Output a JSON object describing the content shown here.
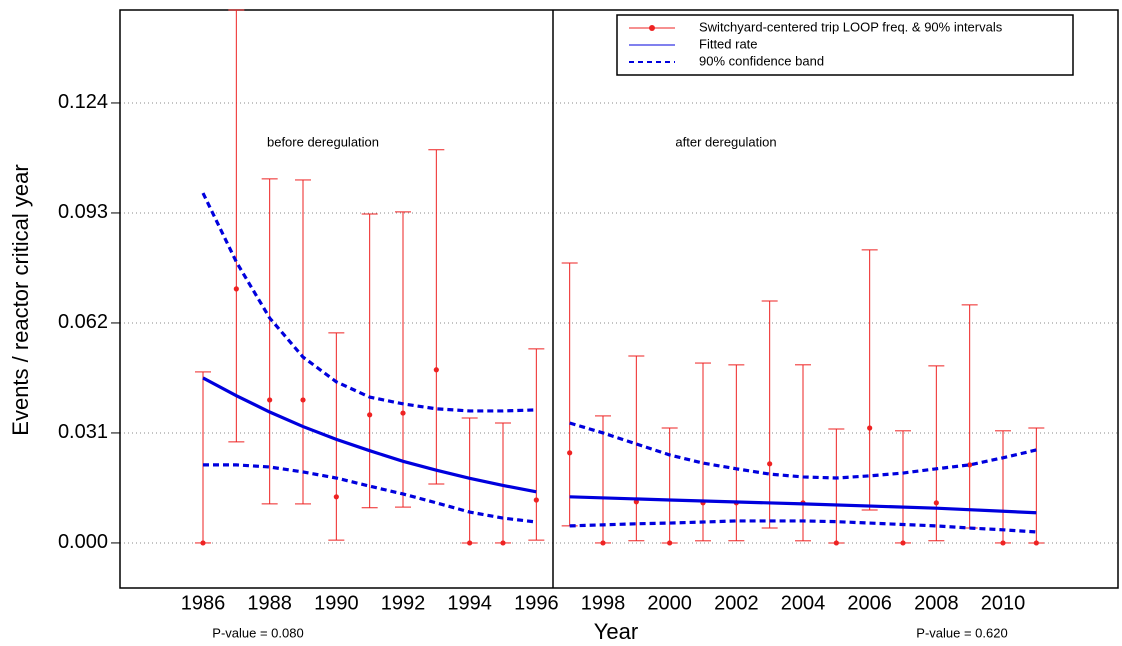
{
  "chart_data": {
    "type": "errorbar",
    "x_label": "Year",
    "y_label": "Events / reactor critical year",
    "xlim": [
      1983.51,
      2013.45
    ],
    "ylim": [
      -0.0127,
      0.1502
    ],
    "xticks": [
      1986,
      1988,
      1990,
      1992,
      1994,
      1996,
      1998,
      2000,
      2002,
      2004,
      2006,
      2008,
      2010
    ],
    "yticks": [
      {
        "value": 0,
        "label": "0.000"
      },
      {
        "value": 0.031,
        "label": "0.031"
      },
      {
        "value": 0.062,
        "label": "0.062"
      },
      {
        "value": 0.093,
        "label": "0.093"
      },
      {
        "value": 0.124,
        "label": "0.124"
      }
    ],
    "grid": true,
    "divider": 1996.5,
    "legend": "top-right",
    "annotations": [
      "before deregulation",
      "after deregulation",
      "P-value = 0.080",
      "P-value = 0.620"
    ],
    "x": [
      1986,
      1987,
      1988,
      1989,
      1990,
      1991,
      1992,
      1993,
      1994,
      1995,
      1996,
      1997,
      1998,
      1999,
      2000,
      2001,
      2002,
      2003,
      2004,
      2005,
      2006,
      2007,
      2008,
      2009,
      2010,
      2011
    ],
    "points": {
      "name": "Switchyard-centered trip LOOP freq. & 90% intervals",
      "color": "#ee2222",
      "values": [
        0,
        0.0716,
        0.0403,
        0.0403,
        0.013,
        0.0361,
        0.0366,
        0.0488,
        0,
        0,
        0.0121,
        0.0254,
        0,
        0.0116,
        0,
        0.0113,
        0.0113,
        0.0223,
        0.0113,
        0,
        0.0324,
        0,
        0.0113,
        0.022,
        0,
        0
      ],
      "lower": [
        0,
        0.0285,
        0.011,
        0.011,
        0.0008,
        0.0099,
        0.0101,
        0.0166,
        0,
        0,
        0.0008,
        0.0048,
        0,
        0.0006,
        0,
        0.0006,
        0.0006,
        0.0042,
        0.0006,
        0,
        0.0093,
        0,
        0.0006,
        0.0042,
        0,
        0
      ],
      "upper": [
        0.0482,
        0.1502,
        0.1026,
        0.1023,
        0.0592,
        0.0927,
        0.0933,
        0.1108,
        0.0352,
        0.0338,
        0.0547,
        0.0789,
        0.0358,
        0.0527,
        0.0324,
        0.0507,
        0.0502,
        0.0682,
        0.0502,
        0.0321,
        0.0826,
        0.0316,
        0.0499,
        0.0671,
        0.0316,
        0.0324
      ]
    },
    "series": [
      {
        "name": "Fitted rate",
        "color": "#0000dd",
        "style": "solid",
        "pieces": [
          {
            "x": [
              1986,
              1987,
              1988,
              1989,
              1990,
              1991,
              1992,
              1993,
              1994,
              1995,
              1996
            ],
            "values": [
              0.0465,
              0.0415,
              0.0369,
              0.0328,
              0.0292,
              0.026,
              0.023,
              0.0205,
              0.0182,
              0.0162,
              0.0144
            ]
          },
          {
            "x": [
              1997,
              2000,
              2004,
              2008,
              2011
            ],
            "values": [
              0.013,
              0.0121,
              0.011,
              0.0098,
              0.0085
            ]
          }
        ]
      },
      {
        "name": "90% confidence band",
        "color": "#0000dd",
        "style": "dashed",
        "pieces": [
          {
            "x": [
              1986,
              1987,
              1988,
              1989,
              1990,
              1991,
              1992,
              1993,
              1994,
              1995,
              1996
            ],
            "values": [
              0.0986,
              0.0792,
              0.0634,
              0.0524,
              0.0454,
              0.0411,
              0.0392,
              0.0378,
              0.0372,
              0.0372,
              0.0375
            ]
          },
          {
            "x": [
              1986,
              1987,
              1988,
              1989,
              1990,
              1991,
              1992,
              1993,
              1994,
              1995,
              1996
            ],
            "values": [
              0.022,
              0.022,
              0.0214,
              0.02,
              0.0183,
              0.016,
              0.0138,
              0.0113,
              0.0087,
              0.007,
              0.0059
            ]
          },
          {
            "x": [
              1997,
              1998,
              1999,
              2000,
              2001,
              2002,
              2003,
              2004,
              2005,
              2006,
              2007,
              2008,
              2009,
              2010,
              2011
            ],
            "values": [
              0.0338,
              0.031,
              0.0279,
              0.0248,
              0.0225,
              0.0209,
              0.0194,
              0.0186,
              0.0183,
              0.0189,
              0.0197,
              0.0209,
              0.022,
              0.024,
              0.0262
            ]
          },
          {
            "x": [
              1997,
              1998,
              1999,
              2000,
              2001,
              2002,
              2003,
              2004,
              2005,
              2006,
              2007,
              2008,
              2009,
              2010,
              2011
            ],
            "values": [
              0.0048,
              0.0051,
              0.0054,
              0.0056,
              0.0059,
              0.0062,
              0.0062,
              0.0062,
              0.006,
              0.0056,
              0.0052,
              0.0048,
              0.0042,
              0.0037,
              0.0031
            ]
          }
        ]
      }
    ]
  }
}
